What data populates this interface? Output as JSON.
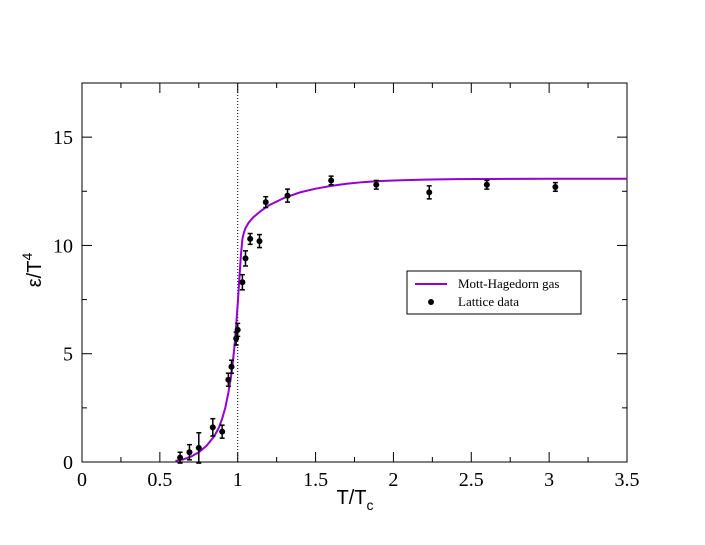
{
  "chart_data": {
    "type": "scatter",
    "xlabel": "T/T",
    "xlabel_sub": "c",
    "ylabel": "ε/T",
    "ylabel_sup": "4",
    "xlim": [
      0,
      3.5
    ],
    "ylim": [
      0,
      17.5
    ],
    "x_ticks": [
      0,
      0.5,
      1,
      1.5,
      2,
      2.5,
      3,
      3.5
    ],
    "x_tick_labels": [
      "0",
      "0.5",
      "1",
      "1.5",
      "2",
      "2.5",
      "3",
      "3.5"
    ],
    "y_ticks": [
      0,
      5,
      10,
      15
    ],
    "y_tick_labels": [
      "0",
      "5",
      "10",
      "15"
    ],
    "grid": false,
    "vline_x": 1.0,
    "legend_position": "right-center",
    "series": [
      {
        "name": "Mott-Hagedorn gas",
        "kind": "line",
        "color": "#9400d3",
        "x": [
          0.6,
          0.65,
          0.7,
          0.75,
          0.8,
          0.85,
          0.88,
          0.9,
          0.92,
          0.94,
          0.96,
          0.97,
          0.98,
          0.99,
          1.0,
          1.01,
          1.02,
          1.03,
          1.04,
          1.05,
          1.07,
          1.1,
          1.15,
          1.2,
          1.3,
          1.4,
          1.5,
          1.6,
          1.7,
          1.8,
          1.9,
          2.0,
          2.2,
          2.4,
          2.6,
          3.0,
          3.5
        ],
        "y": [
          0.05,
          0.12,
          0.25,
          0.45,
          0.75,
          1.2,
          1.6,
          2.0,
          2.5,
          3.2,
          4.1,
          4.7,
          5.4,
          6.3,
          7.3,
          8.4,
          9.5,
          10.3,
          10.6,
          10.8,
          11.05,
          11.3,
          11.6,
          11.85,
          12.2,
          12.45,
          12.62,
          12.75,
          12.85,
          12.92,
          12.97,
          13.0,
          13.04,
          13.06,
          13.07,
          13.08,
          13.08
        ]
      },
      {
        "name": "Lattice data",
        "kind": "scatter",
        "color": "#000000",
        "x": [
          0.63,
          0.69,
          0.75,
          0.84,
          0.9,
          0.94,
          0.96,
          0.99,
          1.0,
          1.03,
          1.05,
          1.08,
          1.14,
          1.18,
          1.32,
          1.6,
          1.89,
          2.23,
          2.6,
          3.04
        ],
        "y": [
          0.2,
          0.45,
          0.65,
          1.6,
          1.4,
          3.8,
          4.4,
          5.7,
          6.1,
          8.3,
          9.4,
          10.3,
          10.2,
          12.0,
          12.3,
          13.0,
          12.8,
          12.45,
          12.8,
          12.7
        ],
        "err": [
          0.25,
          0.35,
          0.7,
          0.4,
          0.3,
          0.3,
          0.3,
          0.3,
          0.3,
          0.35,
          0.35,
          0.25,
          0.3,
          0.25,
          0.3,
          0.2,
          0.2,
          0.3,
          0.2,
          0.2
        ]
      }
    ]
  }
}
